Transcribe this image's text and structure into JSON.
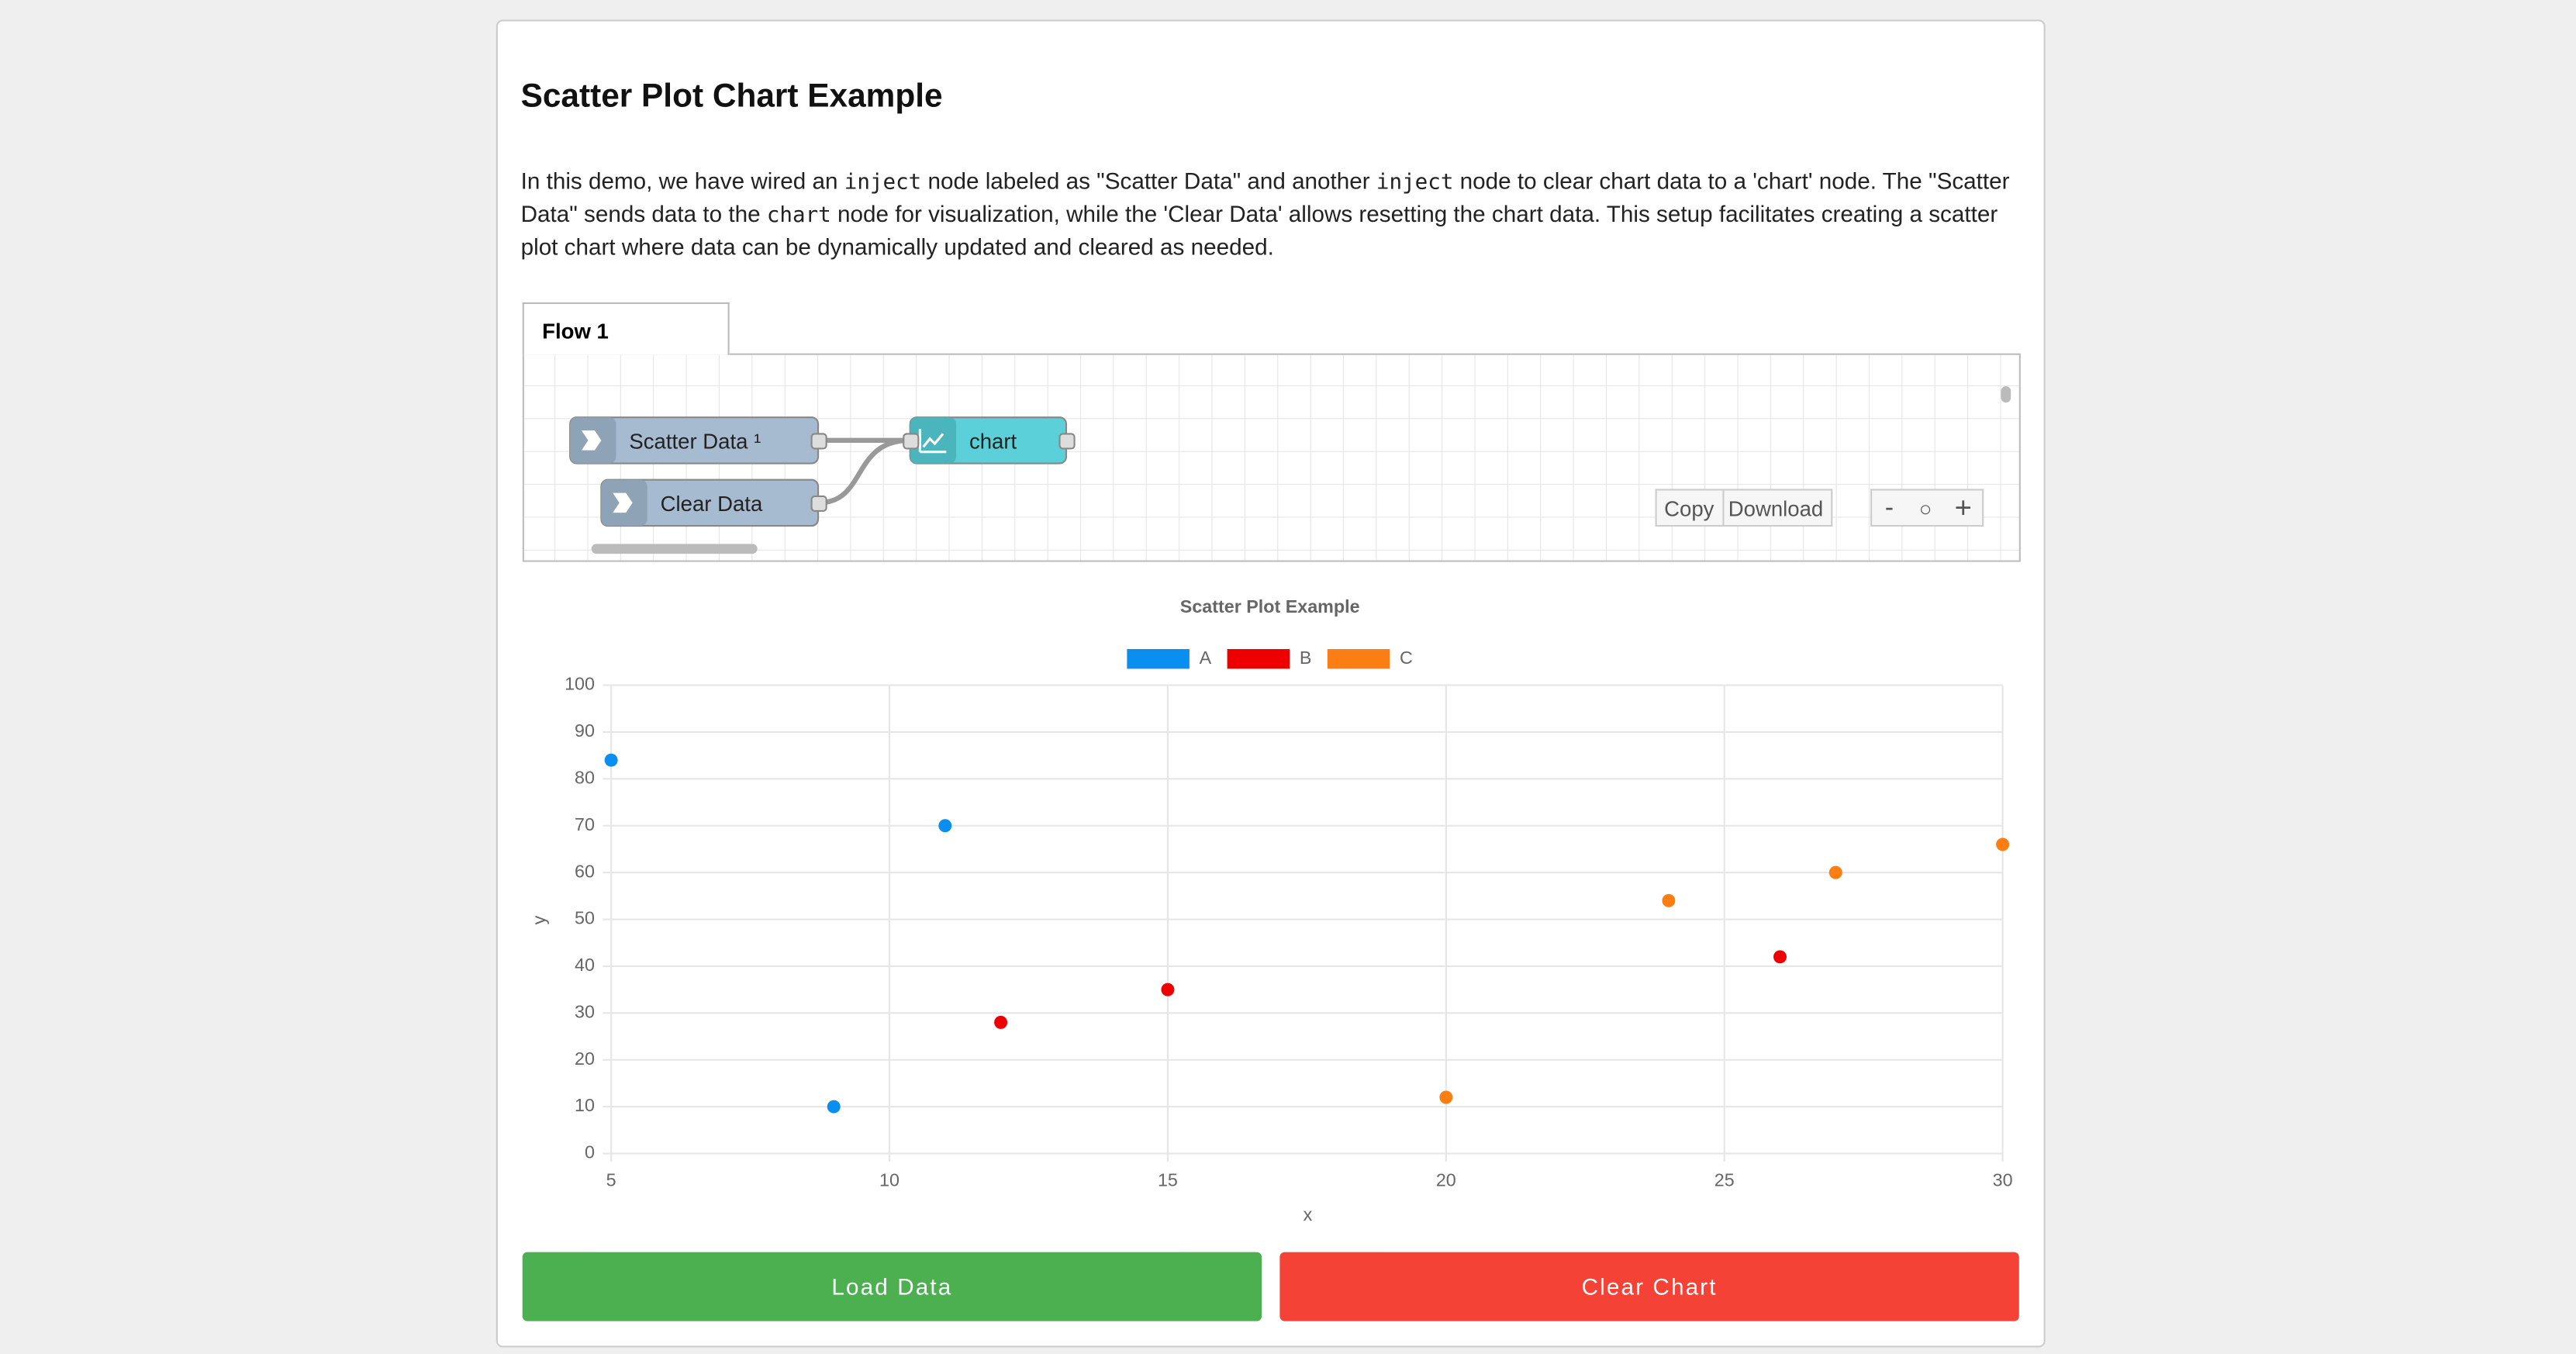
{
  "header": {
    "title": "Scatter Plot Chart Example"
  },
  "description": [
    {
      "text": "In this demo, we have wired an "
    },
    {
      "code": "inject"
    },
    {
      "text": " node labeled as \"Scatter Data\" and another "
    },
    {
      "code": "inject"
    },
    {
      "text": " node to clear chart data to a 'chart' node. The \"Scatter Data\" sends data to the "
    },
    {
      "code": "chart"
    },
    {
      "text": " node for visualization, while the 'Clear Data' allows resetting the chart data. This setup facilitates creating a scatter plot chart where data can be dynamically updated and cleared as needed."
    }
  ],
  "flow": {
    "tab": "Flow 1",
    "nodes": [
      {
        "label": "Scatter Data ¹"
      },
      {
        "label": "Clear Data"
      },
      {
        "label": "chart"
      }
    ],
    "toolbar": [
      "Copy",
      "Download"
    ],
    "zoom": [
      "-",
      "○",
      "+"
    ]
  },
  "chart_data": {
    "type": "scatter",
    "title": "Scatter Plot Example",
    "x_label": "x",
    "y_label": "y",
    "xlim": [
      5,
      30
    ],
    "xticks": [
      5,
      10,
      15,
      20,
      25,
      30
    ],
    "ylim": [
      0,
      100
    ],
    "yticks": [
      0,
      10,
      20,
      30,
      40,
      50,
      60,
      70,
      80,
      90,
      100
    ],
    "grid": true,
    "series": [
      {
        "name": "A",
        "color": "#0a8ff0",
        "x": [
          5,
          9,
          11
        ],
        "values": [
          84,
          10,
          70
        ]
      },
      {
        "name": "B",
        "color": "#ee0000",
        "x": [
          12,
          15,
          26
        ],
        "values": [
          28,
          35,
          42
        ]
      },
      {
        "name": "C",
        "color": "#fb7e15",
        "x": [
          20,
          24,
          27,
          30
        ],
        "values": [
          12,
          54,
          60,
          66
        ]
      }
    ]
  },
  "buttons": [
    "Load Data",
    "Clear Chart"
  ]
}
